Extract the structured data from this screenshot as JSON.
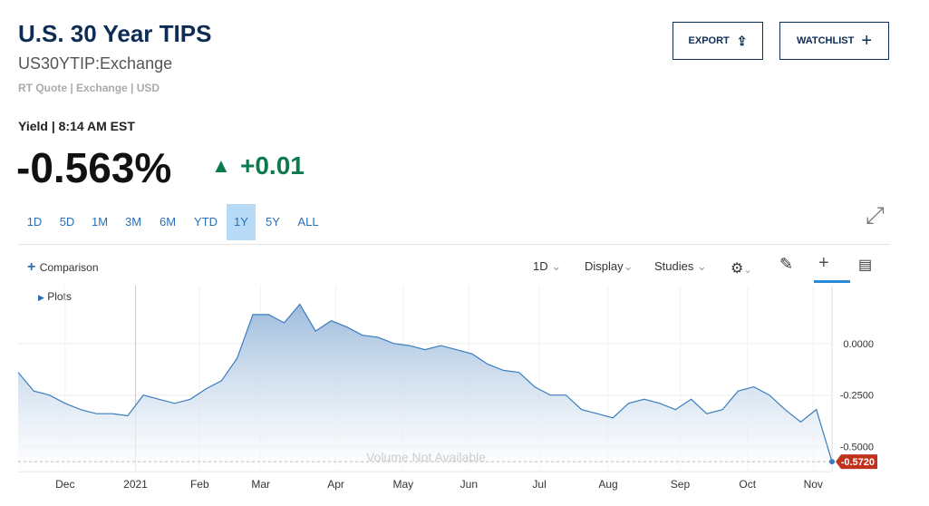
{
  "header": {
    "title": "U.S. 30 Year TIPS",
    "symbol": "US30YTIP:Exchange",
    "quote_info": "RT Quote | Exchange | USD",
    "buttons": [
      "EXPORT",
      "WATCHLIST"
    ],
    "yield_time": "Yield | 8:14 AM EST",
    "price": "-0.563%",
    "change": "+0.01"
  },
  "ranges": {
    "items": [
      "1D",
      "5D",
      "1M",
      "3M",
      "6M",
      "YTD",
      "1Y",
      "5Y",
      "ALL"
    ],
    "active": 6
  },
  "toolbar": {
    "comparison": "Comparison",
    "interval": "1D",
    "display": "Display",
    "studies": "Studies",
    "plots": "Plots"
  },
  "chart_data": {
    "type": "area",
    "color": "#3a7dbf",
    "volume_note": "Volume Not Available",
    "values": [
      -0.14,
      -0.23,
      -0.25,
      -0.29,
      -0.32,
      -0.34,
      -0.34,
      -0.35,
      -0.25,
      -0.27,
      -0.29,
      -0.27,
      -0.22,
      -0.18,
      -0.07,
      0.14,
      0.14,
      0.1,
      0.19,
      0.06,
      0.11,
      0.08,
      0.04,
      0.03,
      0,
      -0.01,
      -0.03,
      -0.01,
      -0.03,
      -0.05,
      -0.1,
      -0.13,
      -0.14,
      -0.21,
      -0.25,
      -0.25,
      -0.32,
      -0.34,
      -0.36,
      -0.29,
      -0.27,
      -0.29,
      -0.32,
      -0.27,
      -0.34,
      -0.32,
      -0.23,
      -0.21,
      -0.25,
      -0.32,
      -0.38,
      -0.32,
      -0.572
    ],
    "xlim": [
      0,
      52
    ],
    "xticks": [
      {
        "value": 3,
        "label": "Dec"
      },
      {
        "value": 7.5,
        "label": "2021"
      },
      {
        "value": 11.6,
        "label": "Feb"
      },
      {
        "value": 15.5,
        "label": "Mar"
      },
      {
        "value": 20.3,
        "label": "Apr"
      },
      {
        "value": 24.6,
        "label": "May"
      },
      {
        "value": 28.8,
        "label": "Jun"
      },
      {
        "value": 33.3,
        "label": "Jul"
      },
      {
        "value": 37.7,
        "label": "Aug"
      },
      {
        "value": 42.3,
        "label": "Sep"
      },
      {
        "value": 46.6,
        "label": "Oct"
      },
      {
        "value": 50.8,
        "label": "Nov"
      }
    ],
    "ylim": [
      -0.62,
      0.28
    ],
    "yticks": [
      {
        "value": 0,
        "label": "0.0000"
      },
      {
        "value": -0.25,
        "label": "-0.2500"
      },
      {
        "value": -0.5,
        "label": "-0.5000"
      }
    ],
    "last_label": {
      "value": -0.572,
      "label": "-0.5720"
    },
    "grid": true
  }
}
